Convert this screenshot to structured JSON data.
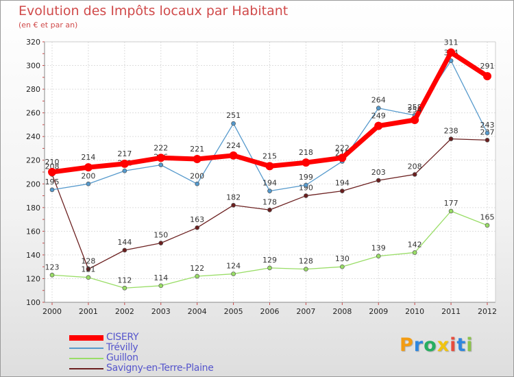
{
  "title": "Evolution des Impôts locaux par Habitant",
  "subtitle": "(en € et par an)",
  "chart_data": {
    "type": "line",
    "title": "Evolution des Impôts locaux par Habitant",
    "subtitle": "(en € et par an)",
    "xlabel": "",
    "ylabel": "",
    "categories": [
      "2000",
      "2001",
      "2002",
      "2003",
      "2004",
      "2005",
      "2006",
      "2007",
      "2008",
      "2009",
      "2010",
      "2011",
      "2012"
    ],
    "ylim": [
      100,
      320
    ],
    "yticks": [
      100,
      120,
      140,
      160,
      180,
      200,
      220,
      240,
      260,
      280,
      300,
      320
    ],
    "grid": true,
    "legend_position": "bottom-left",
    "series": [
      {
        "name": "Savigny-en-Terre-Plaine",
        "color": "#6b1f1f",
        "values": [
          208,
          128,
          144,
          150,
          163,
          182,
          178,
          190,
          194,
          203,
          208,
          238,
          237
        ]
      },
      {
        "name": "Guillon",
        "color": "#99dd66",
        "values": [
          123,
          121,
          112,
          114,
          122,
          124,
          129,
          128,
          130,
          139,
          142,
          177,
          165
        ]
      },
      {
        "name": "Trévilly",
        "color": "#5599cc",
        "values": [
          195,
          200,
          211,
          216,
          200,
          251,
          194,
          199,
          219,
          264,
          258,
          304,
          243
        ]
      },
      {
        "name": "CISERY",
        "color": "#ff0000",
        "values": [
          210,
          214,
          217,
          222,
          221,
          224,
          215,
          218,
          222,
          249,
          254,
          311,
          291
        ]
      }
    ]
  },
  "legend": {
    "items": [
      {
        "label": "CISERY",
        "color": "#ff0000"
      },
      {
        "label": "Trévilly",
        "color": "#5599cc"
      },
      {
        "label": "Guillon",
        "color": "#99dd66"
      },
      {
        "label": "Savigny-en-Terre-Plaine",
        "color": "#6b1f1f"
      }
    ]
  },
  "logo": {
    "text": "Proxiti",
    "letters": [
      "P",
      "r",
      "o",
      "x",
      "i",
      "t",
      "i"
    ],
    "colors": [
      "#f39c12",
      "#2e86de",
      "#27ae60",
      "#f1c40f",
      "#e74c3c",
      "#2e86de",
      "#8bc34a"
    ]
  }
}
